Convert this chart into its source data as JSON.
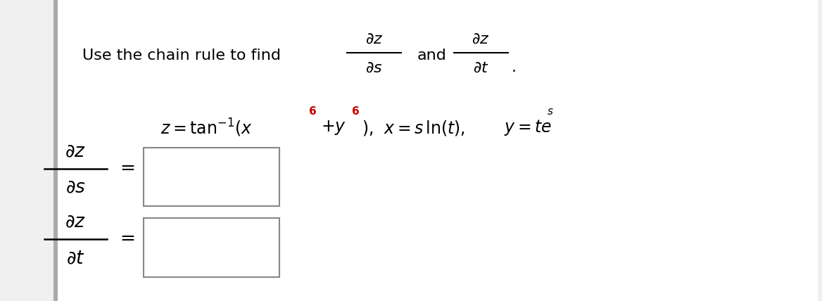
{
  "background_color": "#ffffff",
  "page_bg": "#f0f0f0",
  "left_bar_color": "#aaaaaa",
  "text_color": "#000000",
  "red_color": "#cc0000",
  "box_edge_color": "#888888",
  "figsize": [
    11.68,
    4.28
  ],
  "dpi": 100
}
